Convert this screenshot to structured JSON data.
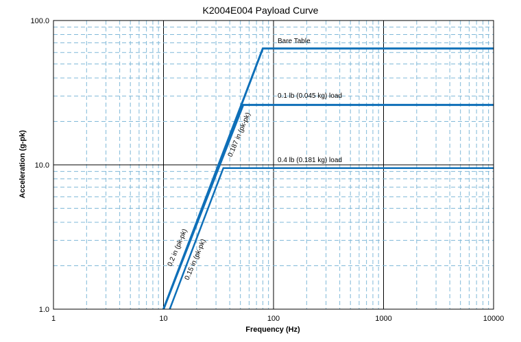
{
  "chart_data": {
    "type": "line",
    "title": "K2004E004 Payload Curve",
    "xlabel": "Frequency (Hz)",
    "ylabel": "Acceleration (g-pk)",
    "xscale": "log",
    "yscale": "log",
    "xlim": [
      1,
      10000
    ],
    "ylim": [
      1,
      100
    ],
    "grid": true,
    "x_ticks": [
      "1",
      "10",
      "100",
      "1000",
      "10000"
    ],
    "y_ticks": [
      "1.0",
      "10.0",
      "100.0"
    ],
    "colors": {
      "series": "#0e6fb8",
      "major_grid": "#000000",
      "minor_grid": "#7fb8d8"
    },
    "series": [
      {
        "name": "Bare Table",
        "x": [
          10,
          80,
          10000
        ],
        "y": [
          1,
          64,
          64
        ]
      },
      {
        "name": "0.1 lb (0.045 kg) load",
        "x": [
          10,
          53,
          10000
        ],
        "y": [
          1,
          26,
          26
        ]
      },
      {
        "name": "0.4 lb (0.181 kg) load",
        "x": [
          11.4,
          35,
          10000
        ],
        "y": [
          1,
          9.5,
          9.5
        ]
      }
    ],
    "annotations": [
      {
        "text": "Bare Table"
      },
      {
        "text": "0.1 lb (0.045  kg) load"
      },
      {
        "text": "0.4 lb (0.181  kg) load"
      },
      {
        "text": "0.187 in (pk-pk)"
      },
      {
        "text": "0.2 in (pk-pk)"
      },
      {
        "text": "0.15 in (pk-pk)"
      }
    ]
  }
}
